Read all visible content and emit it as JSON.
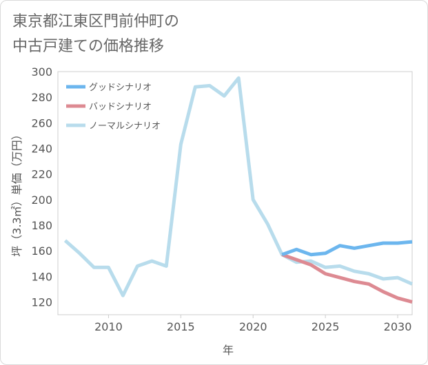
{
  "title_lines": [
    "東京都江東区門前仲町の",
    "中古戸建ての価格推移"
  ],
  "chart_data": {
    "type": "line",
    "title": "東京都江東区門前仲町の中古戸建ての価格推移",
    "xlabel": "年",
    "ylabel": "坪（3.3㎡）単価（万円）",
    "xlim": [
      2006.5,
      2031
    ],
    "ylim": [
      110,
      300
    ],
    "x_ticks": [
      2010,
      2015,
      2020,
      2025,
      2030
    ],
    "y_ticks": [
      120,
      140,
      160,
      180,
      200,
      220,
      240,
      260,
      280,
      300
    ],
    "grid": false,
    "legend_position": "top-left",
    "series": [
      {
        "name": "グッドシナリオ",
        "color": "#6cb6ee",
        "points": [
          [
            2022,
            157
          ],
          [
            2023,
            161
          ],
          [
            2024,
            157
          ],
          [
            2025,
            158
          ],
          [
            2026,
            164
          ],
          [
            2027,
            162
          ],
          [
            2028,
            164
          ],
          [
            2029,
            166
          ],
          [
            2030,
            166
          ],
          [
            2031,
            167
          ]
        ]
      },
      {
        "name": "バッドシナリオ",
        "color": "#dd8a92",
        "points": [
          [
            2022,
            157
          ],
          [
            2023,
            153
          ],
          [
            2024,
            149
          ],
          [
            2025,
            142
          ],
          [
            2026,
            139
          ],
          [
            2027,
            136
          ],
          [
            2028,
            134
          ],
          [
            2029,
            128
          ],
          [
            2030,
            123
          ],
          [
            2031,
            120
          ]
        ]
      },
      {
        "name": "ノーマルシナリオ",
        "color": "#b8dcec",
        "points": [
          [
            2007,
            168
          ],
          [
            2008,
            158
          ],
          [
            2009,
            147
          ],
          [
            2010,
            147
          ],
          [
            2011,
            125
          ],
          [
            2012,
            148
          ],
          [
            2013,
            152
          ],
          [
            2014,
            148
          ],
          [
            2015,
            243
          ],
          [
            2016,
            288
          ],
          [
            2017,
            289
          ],
          [
            2018,
            281
          ],
          [
            2019,
            295
          ],
          [
            2020,
            200
          ],
          [
            2021,
            181
          ],
          [
            2022,
            157
          ],
          [
            2023,
            151
          ],
          [
            2024,
            152
          ],
          [
            2025,
            147
          ],
          [
            2026,
            148
          ],
          [
            2027,
            144
          ],
          [
            2028,
            142
          ],
          [
            2029,
            138
          ],
          [
            2030,
            139
          ],
          [
            2031,
            134
          ]
        ]
      }
    ]
  }
}
